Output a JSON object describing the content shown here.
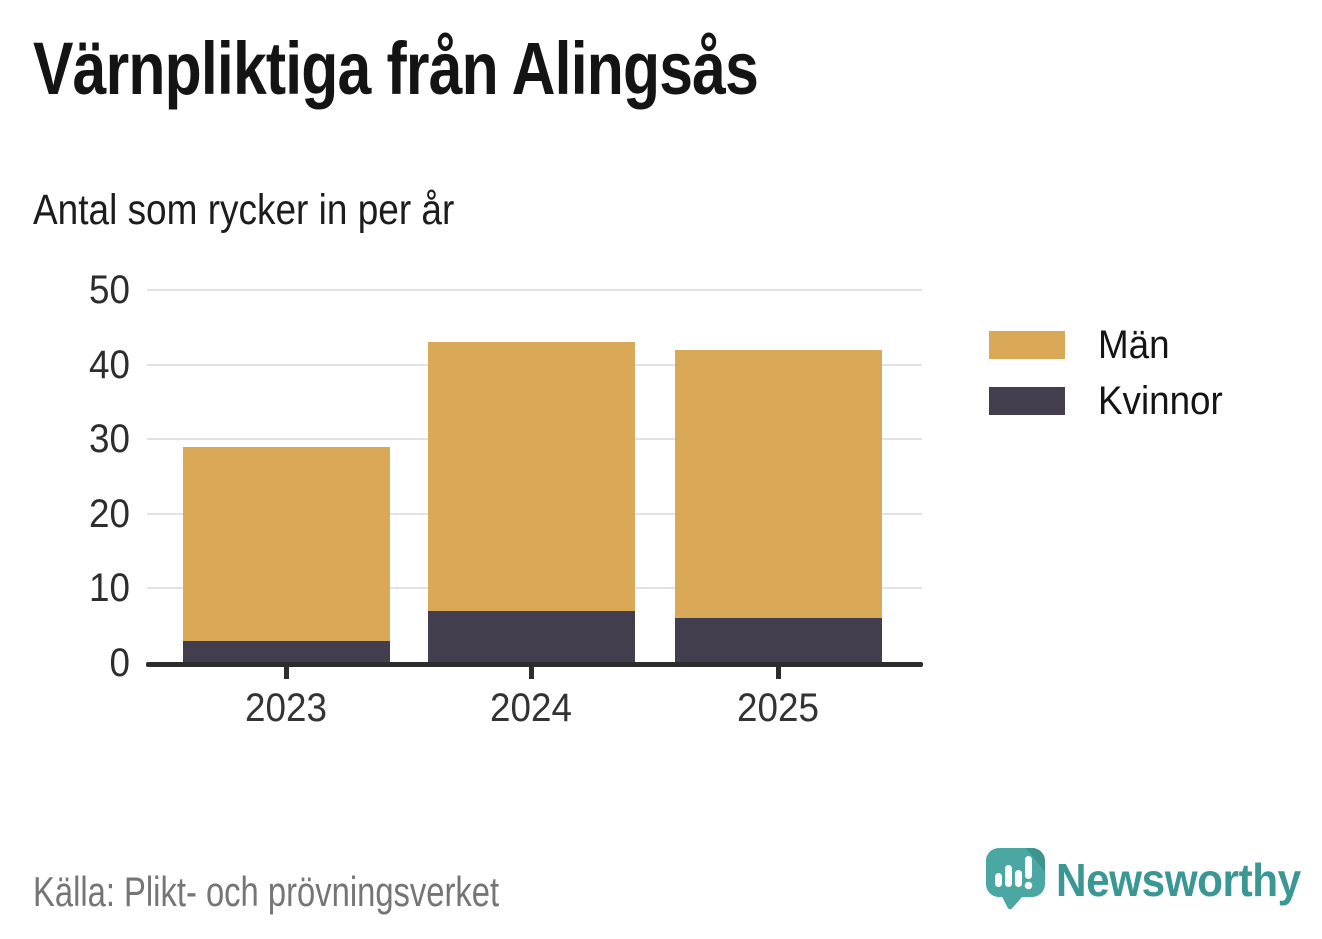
{
  "chart_data": {
    "type": "bar",
    "stacked": true,
    "title": "Värnpliktiga från Alingsås",
    "subtitle": "Antal som rycker in per år",
    "categories": [
      "2023",
      "2024",
      "2025"
    ],
    "series": [
      {
        "name": "Män",
        "color": "#D9A957",
        "values": [
          26,
          36,
          36
        ]
      },
      {
        "name": "Kvinnor",
        "color": "#433E4E",
        "values": [
          3,
          7,
          6
        ]
      }
    ],
    "stack_totals": [
      29,
      43,
      42
    ],
    "stack_order_bottom_to_top": [
      "Kvinnor",
      "Män"
    ],
    "xlabel": "",
    "ylabel": "",
    "ylim": [
      0,
      50
    ],
    "yticks": [
      0,
      10,
      20,
      30,
      40,
      50
    ],
    "grid": "horizontal",
    "legend_position": "right",
    "source": "Källa: Plikt- och prövningsverket"
  },
  "footer": {
    "brand": "Newsworthy",
    "logo_icon": "speech-bubble-bar-chart-exclamation-icon",
    "brand_color": "#3A9793",
    "logo_bubble_color": "#4BA7A1",
    "logo_fold_color": "#3D938D"
  }
}
